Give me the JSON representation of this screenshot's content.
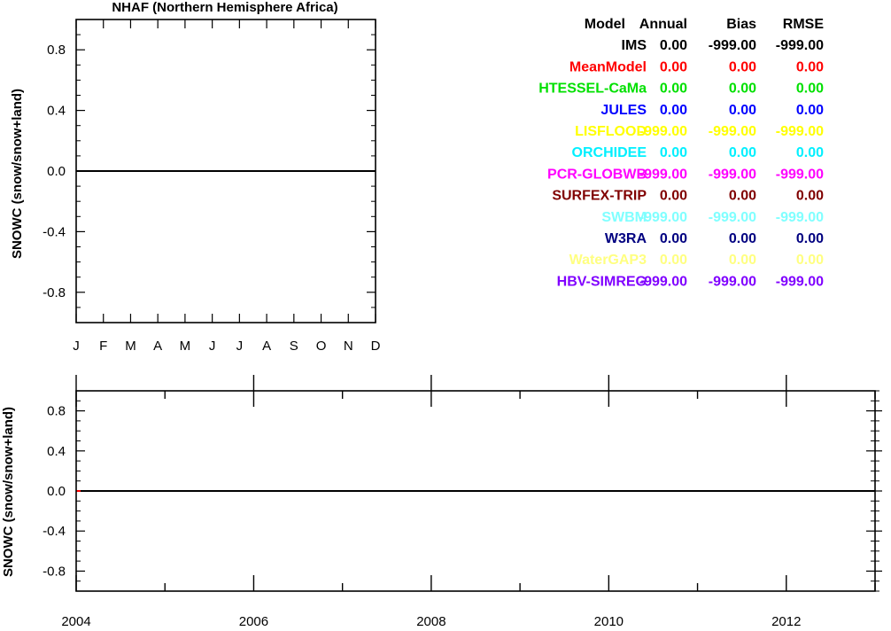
{
  "chart_data": [
    {
      "type": "line",
      "title": "NHAF (Northern Hemisphere Africa)",
      "ylabel": "SNOWC (snow/snow+land)",
      "xlabel": "",
      "categories": [
        "J",
        "F",
        "M",
        "A",
        "M",
        "J",
        "J",
        "A",
        "S",
        "O",
        "N",
        "D"
      ],
      "y_ticks": [
        "0.8",
        "0.4",
        "0.0",
        "-0.4",
        "-0.8"
      ],
      "ylim": [
        -1,
        1
      ],
      "grid": false,
      "series": [
        {
          "name": "IMS",
          "color": "#000000",
          "values": [
            0,
            0,
            0,
            0,
            0,
            0,
            0,
            0,
            0,
            0,
            0,
            0
          ]
        }
      ]
    },
    {
      "type": "line",
      "title": "",
      "ylabel": "SNOWC (snow/snow+land)",
      "xlabel": "",
      "x_ticks": [
        "2004",
        "2006",
        "2008",
        "2010",
        "2012"
      ],
      "xlim": [
        2004,
        2013
      ],
      "y_ticks": [
        "0.8",
        "0.4",
        "0.0",
        "-0.4",
        "-0.8"
      ],
      "ylim": [
        -1,
        1
      ],
      "grid": false,
      "series": [
        {
          "name": "IMS",
          "color": "#000000",
          "x": [
            2004,
            2013
          ],
          "values": [
            0,
            0
          ]
        },
        {
          "name": "MeanModel",
          "color": "#ff0000",
          "x": [
            2004,
            2004.05
          ],
          "values": [
            0,
            0
          ]
        }
      ]
    }
  ],
  "stats_table": {
    "headers": [
      "Model",
      "Annual",
      "Bias",
      "RMSE"
    ],
    "rows": [
      {
        "model": "IMS",
        "annual": "0.00",
        "bias": "-999.00",
        "rmse": "-999.00",
        "color": "#000000"
      },
      {
        "model": "MeanModel",
        "annual": "0.00",
        "bias": "0.00",
        "rmse": "0.00",
        "color": "#ff0000"
      },
      {
        "model": "HTESSEL-CaMa",
        "annual": "0.00",
        "bias": "0.00",
        "rmse": "0.00",
        "color": "#00e000"
      },
      {
        "model": "JULES",
        "annual": "0.00",
        "bias": "0.00",
        "rmse": "0.00",
        "color": "#0000ff"
      },
      {
        "model": "LISFLOOD",
        "annual": "-999.00",
        "bias": "-999.00",
        "rmse": "-999.00",
        "color": "#ffff00"
      },
      {
        "model": "ORCHIDEE",
        "annual": "0.00",
        "bias": "0.00",
        "rmse": "0.00",
        "color": "#00f0ff"
      },
      {
        "model": "PCR-GLOBWB",
        "annual": "-999.00",
        "bias": "-999.00",
        "rmse": "-999.00",
        "color": "#ff00ff"
      },
      {
        "model": "SURFEX-TRIP",
        "annual": "0.00",
        "bias": "0.00",
        "rmse": "0.00",
        "color": "#800000"
      },
      {
        "model": "SWBM",
        "annual": "-999.00",
        "bias": "-999.00",
        "rmse": "-999.00",
        "color": "#80ffff"
      },
      {
        "model": "W3RA",
        "annual": "0.00",
        "bias": "0.00",
        "rmse": "0.00",
        "color": "#000080"
      },
      {
        "model": "WaterGAP3",
        "annual": "0.00",
        "bias": "0.00",
        "rmse": "0.00",
        "color": "#ffff80"
      },
      {
        "model": "HBV-SIMREG",
        "annual": "-999.00",
        "bias": "-999.00",
        "rmse": "-999.00",
        "color": "#8000ff"
      }
    ]
  }
}
